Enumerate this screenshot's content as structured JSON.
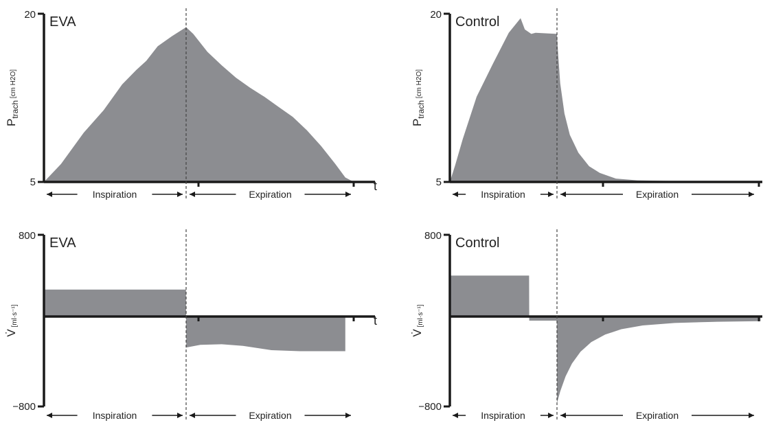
{
  "colors": {
    "fill": "#8c8d91",
    "axis": "#1a1a1a",
    "divider": "#444444"
  },
  "phase_labels": {
    "inspiration": "Inspiration",
    "expiration": "Expiration"
  },
  "time_label": "t",
  "chart_data": [
    {
      "id": "eva-pressure",
      "type": "area",
      "panel_label": "EVA",
      "ylabel": "P",
      "ylabel_sub": "trach",
      "ylabel_unit": "[cm H2O]",
      "ylim": [
        5,
        20
      ],
      "y_tick_labels": [
        "5",
        "20"
      ],
      "xlim": [
        0,
        2.2
      ],
      "divider_x": 1,
      "x": [
        0,
        0.12,
        0.28,
        0.42,
        0.55,
        0.65,
        0.72,
        0.8,
        0.9,
        1.0,
        1.05,
        1.15,
        1.25,
        1.35,
        1.45,
        1.55,
        1.65,
        1.75,
        1.85,
        1.95,
        2.05,
        2.12,
        2.18
      ],
      "y": [
        5,
        6.6,
        9.4,
        11.4,
        13.7,
        15.0,
        15.8,
        17.1,
        18.0,
        18.8,
        18.2,
        16.6,
        15.4,
        14.3,
        13.4,
        12.6,
        11.7,
        10.8,
        9.6,
        8.2,
        6.6,
        5.4,
        5.0
      ]
    },
    {
      "id": "control-pressure",
      "type": "area",
      "panel_label": "Control",
      "ylabel": "P",
      "ylabel_sub": "trach",
      "ylabel_unit": "[cm H2O]",
      "ylim": [
        5,
        20
      ],
      "y_tick_labels": [
        "5",
        "20"
      ],
      "xlim": [
        0,
        2.9
      ],
      "divider_x": 1,
      "x": [
        0,
        0.05,
        0.12,
        0.25,
        0.4,
        0.55,
        0.66,
        0.7,
        0.76,
        0.8,
        1.0,
        1.01,
        1.03,
        1.07,
        1.12,
        1.2,
        1.3,
        1.4,
        1.55,
        1.75,
        2.0,
        2.4,
        2.9
      ],
      "y": [
        5,
        6.5,
        8.8,
        12.6,
        15.5,
        18.3,
        19.6,
        18.6,
        18.2,
        18.3,
        18.2,
        16.5,
        13.8,
        11.1,
        9.2,
        7.6,
        6.4,
        5.8,
        5.3,
        5.15,
        5.1,
        5.05,
        5.05
      ]
    },
    {
      "id": "eva-flow",
      "type": "area",
      "panel_label": "EVA",
      "ylabel": "V̇",
      "ylabel_unit": "[ml·s⁻¹]",
      "ylim": [
        -800,
        800
      ],
      "y_tick_labels": [
        "800",
        "−800"
      ],
      "xlim": [
        0,
        2.2
      ],
      "divider_x": 1,
      "x": [
        0,
        0.999,
        1.001,
        1.1,
        1.25,
        1.4,
        1.6,
        1.8,
        2.0,
        2.12
      ],
      "y": [
        290,
        290,
        -250,
        -225,
        -220,
        -235,
        -275,
        -285,
        -285,
        -285
      ]
    },
    {
      "id": "control-flow",
      "type": "area",
      "panel_label": "Control",
      "ylabel": "V̇",
      "ylabel_unit": "[ml·s⁻¹]",
      "ylim": [
        -800,
        800
      ],
      "y_tick_labels": [
        "800",
        "−800"
      ],
      "xlim": [
        0,
        2.9
      ],
      "divider_x": 1,
      "x": [
        0,
        0.74,
        0.741,
        0.999,
        1.0,
        1.03,
        1.08,
        1.14,
        1.22,
        1.32,
        1.45,
        1.6,
        1.8,
        2.1,
        2.5,
        2.9
      ],
      "y": [
        420,
        420,
        0,
        0,
        -770,
        -660,
        -520,
        -400,
        -290,
        -200,
        -130,
        -80,
        -45,
        -22,
        -10,
        -5
      ]
    }
  ]
}
